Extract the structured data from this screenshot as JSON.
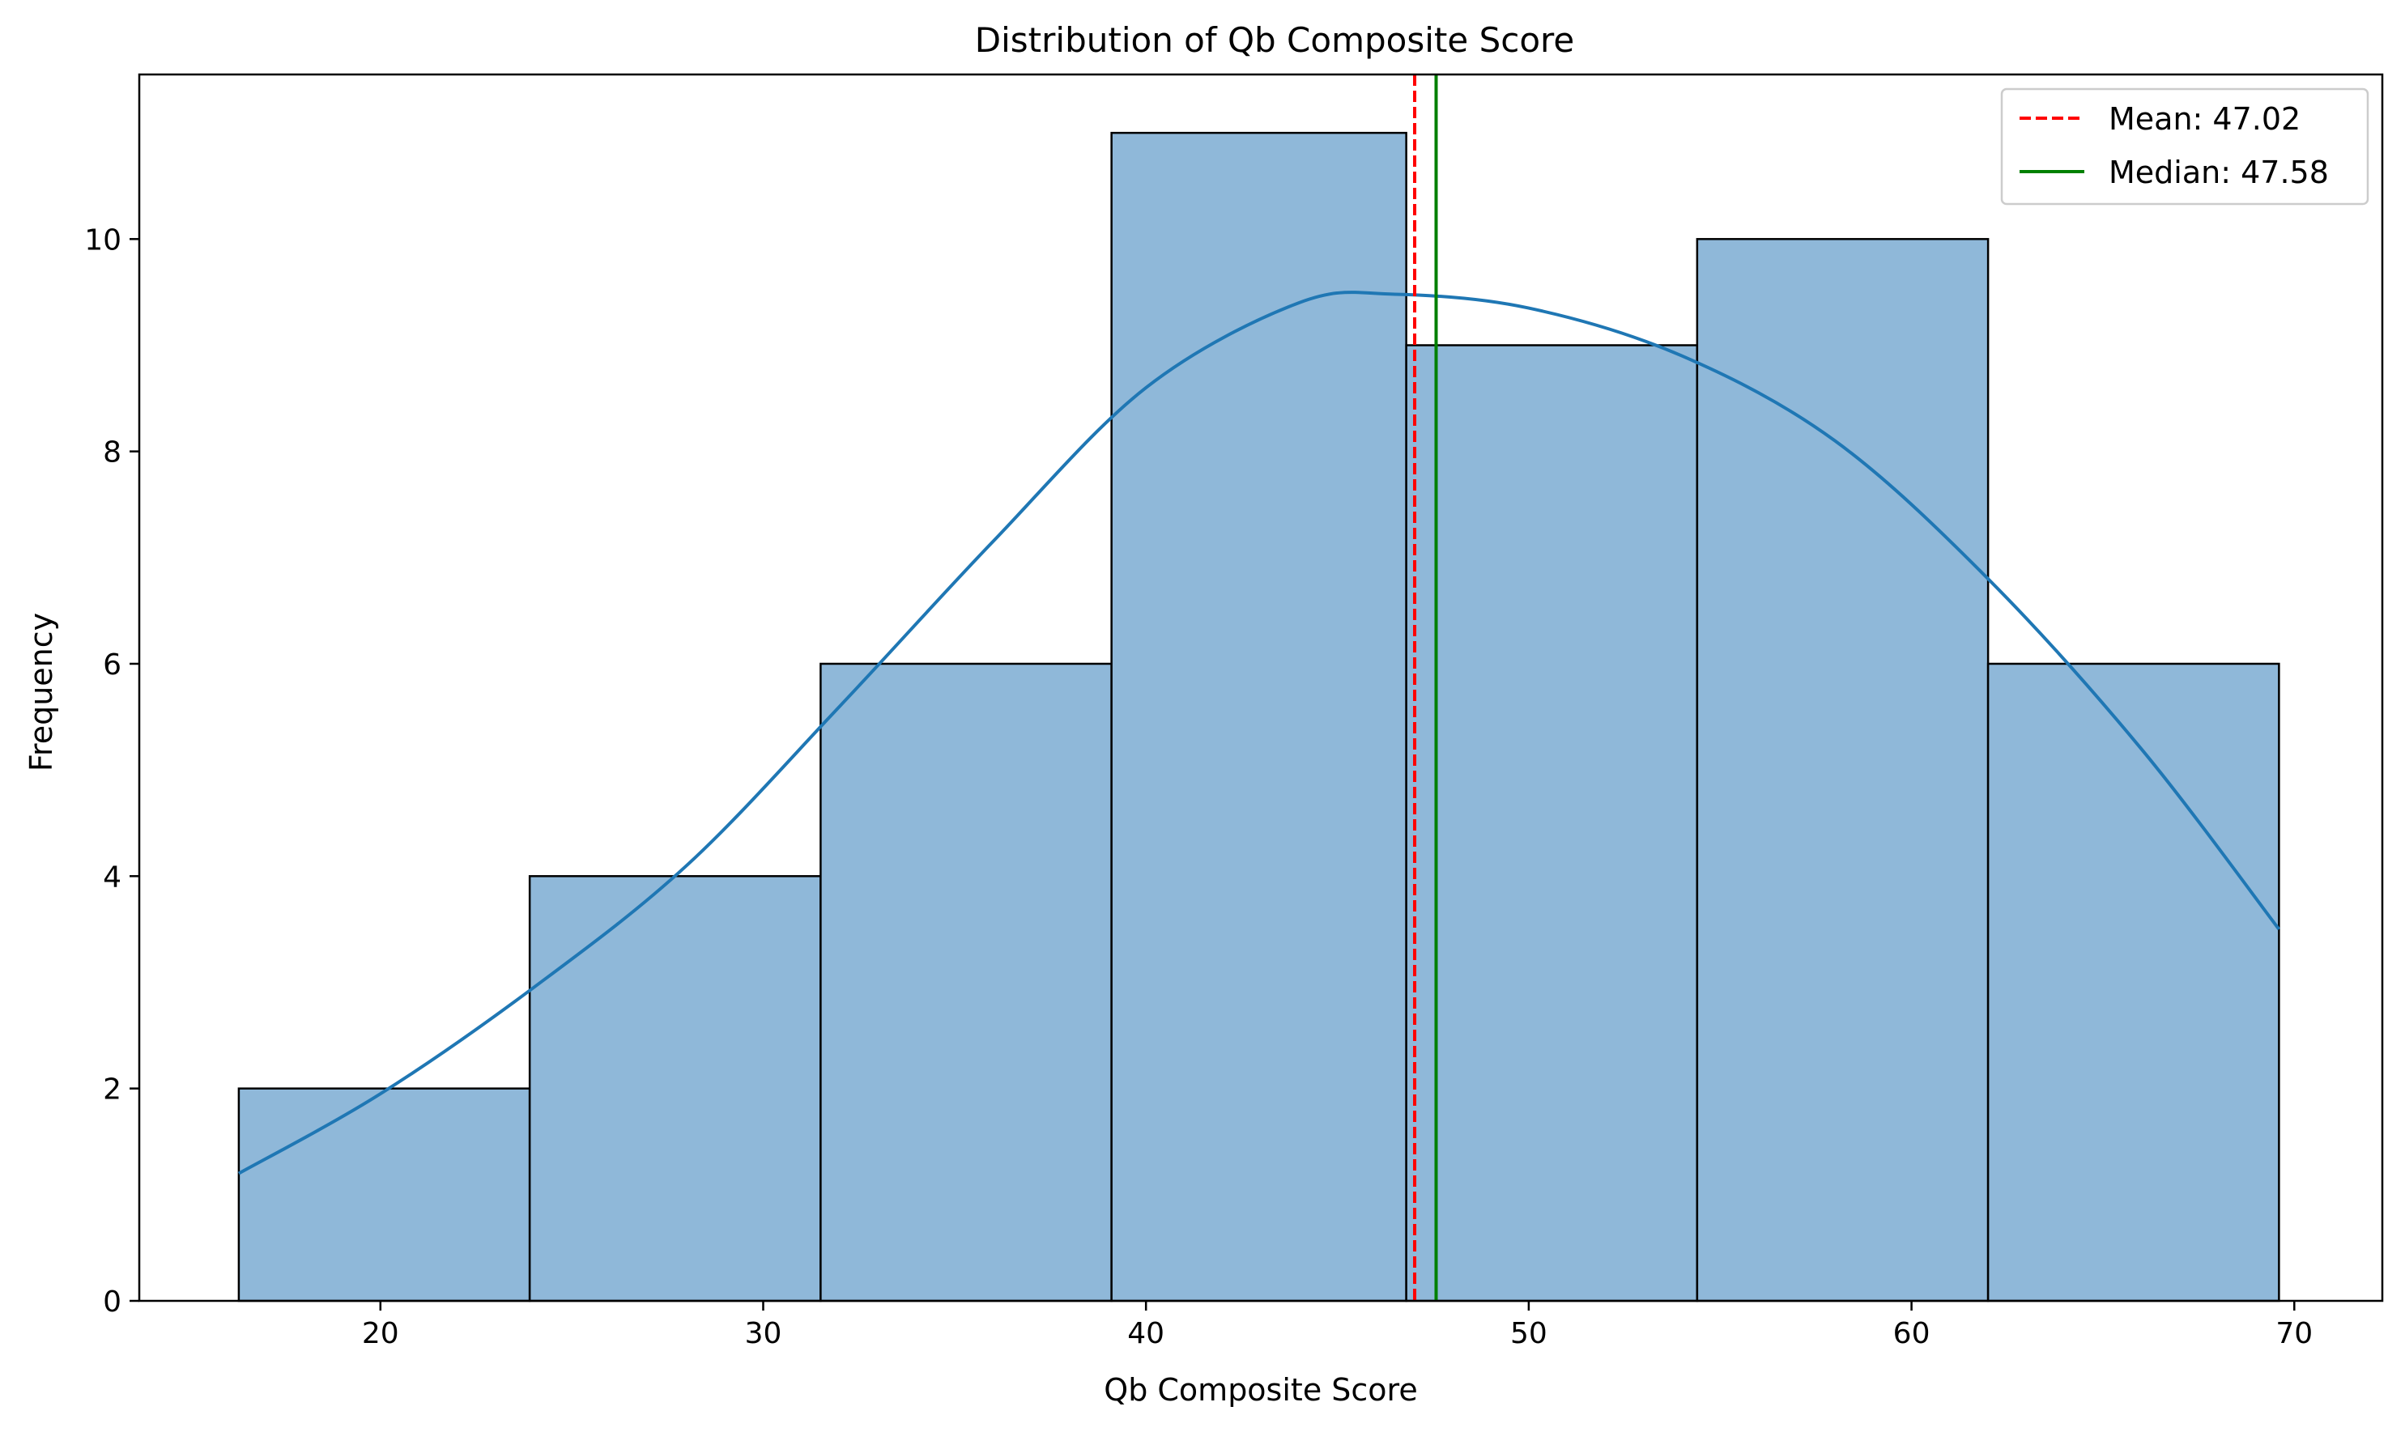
{
  "chart_data": {
    "type": "bar",
    "title": "Distribution of Qb Composite Score",
    "xlabel": "Qb Composite Score",
    "ylabel": "Frequency",
    "xlim": [
      13.7,
      72.3
    ],
    "ylim": [
      0,
      11.55
    ],
    "x_ticks": [
      20,
      30,
      40,
      50,
      60,
      70
    ],
    "y_ticks": [
      0,
      2,
      4,
      6,
      8,
      10
    ],
    "bins": [
      {
        "left": 16.3,
        "right": 23.9,
        "count": 2
      },
      {
        "left": 23.9,
        "right": 31.5,
        "count": 4
      },
      {
        "left": 31.5,
        "right": 39.1,
        "count": 6
      },
      {
        "left": 39.1,
        "right": 46.8,
        "count": 11
      },
      {
        "left": 46.8,
        "right": 54.4,
        "count": 9
      },
      {
        "left": 54.4,
        "right": 62.0,
        "count": 10
      },
      {
        "left": 62.0,
        "right": 69.6,
        "count": 6
      }
    ],
    "kde": {
      "x": [
        16.3,
        20,
        24,
        28,
        32,
        36,
        40,
        44,
        46.5,
        50,
        54,
        58,
        62,
        66,
        69.6
      ],
      "y": [
        1.2,
        1.95,
        2.95,
        4.1,
        5.6,
        7.15,
        8.6,
        9.4,
        9.48,
        9.35,
        8.9,
        8.1,
        6.8,
        5.2,
        3.5
      ]
    },
    "reference_lines": [
      {
        "name": "Mean: 47.02",
        "value": 47.02,
        "color": "#ff0000",
        "style": "dashed"
      },
      {
        "name": "Median: 47.58",
        "value": 47.58,
        "color": "#008000",
        "style": "solid"
      }
    ],
    "colors": {
      "bar_fill": "#8fb8d9",
      "bar_edge": "#000000",
      "kde": "#1f77b4"
    },
    "grid": false,
    "legend_position": "top-right"
  }
}
